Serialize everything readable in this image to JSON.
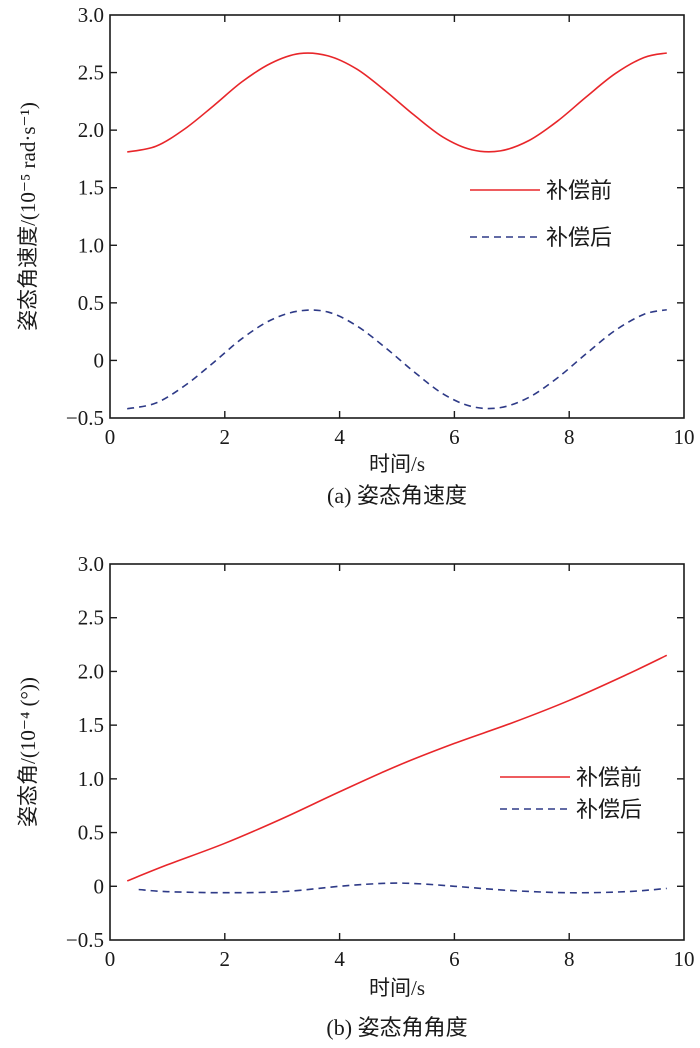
{
  "chart_data": [
    {
      "type": "line",
      "caption": "(a) 姿态角速度",
      "xlabel": "时间/s",
      "ylabel": "姿态角速度/(10⁻⁵ rad·s⁻¹)",
      "xlim": [
        0,
        10
      ],
      "ylim": [
        -0.5,
        3.0
      ],
      "xticks": [
        "0",
        "2",
        "4",
        "6",
        "8",
        "10"
      ],
      "yticks": [
        "−0.5",
        "0",
        "0.5",
        "1.0",
        "1.5",
        "2.0",
        "2.5",
        "3.0"
      ],
      "grid": false,
      "legend_position": "center-right",
      "series": [
        {
          "name": "补偿前",
          "color": "#e8262a",
          "style": "solid",
          "x": [
            0.3,
            0.8,
            1.3,
            1.8,
            2.3,
            2.8,
            3.3,
            3.8,
            4.3,
            4.8,
            5.3,
            5.8,
            6.3,
            6.8,
            7.3,
            7.8,
            8.3,
            8.8,
            9.3,
            9.7
          ],
          "y": [
            1.81,
            1.86,
            2.01,
            2.21,
            2.42,
            2.58,
            2.665,
            2.645,
            2.53,
            2.34,
            2.13,
            1.94,
            1.83,
            1.82,
            1.91,
            2.08,
            2.29,
            2.49,
            2.63,
            2.67
          ]
        },
        {
          "name": "补偿后",
          "color": "#2e3a87",
          "style": "dashed",
          "x": [
            0.3,
            0.8,
            1.3,
            1.8,
            2.3,
            2.8,
            3.3,
            3.8,
            4.3,
            4.8,
            5.3,
            5.8,
            6.3,
            6.8,
            7.3,
            7.8,
            8.3,
            8.8,
            9.3,
            9.7
          ],
          "y": [
            -0.42,
            -0.37,
            -0.22,
            -0.02,
            0.19,
            0.35,
            0.43,
            0.42,
            0.3,
            0.11,
            -0.1,
            -0.29,
            -0.4,
            -0.41,
            -0.32,
            -0.15,
            0.06,
            0.26,
            0.4,
            0.44
          ]
        }
      ]
    },
    {
      "type": "line",
      "caption": "(b) 姿态角角度",
      "xlabel": "时间/s",
      "ylabel": "姿态角/(10⁻⁴ (°))",
      "xlim": [
        0,
        10
      ],
      "ylim": [
        -0.5,
        3.0
      ],
      "xticks": [
        "0",
        "2",
        "4",
        "6",
        "8",
        "10"
      ],
      "yticks": [
        "−0.5",
        "0",
        "0.5",
        "1.0",
        "1.5",
        "2.0",
        "2.5",
        "3.0"
      ],
      "grid": false,
      "legend_position": "center-right",
      "series": [
        {
          "name": "补偿前",
          "color": "#e8262a",
          "style": "solid",
          "x": [
            0.3,
            1,
            2,
            3,
            4,
            5,
            6,
            7,
            8,
            9,
            9.7
          ],
          "y": [
            0.05,
            0.2,
            0.4,
            0.63,
            0.88,
            1.12,
            1.33,
            1.52,
            1.73,
            1.97,
            2.15
          ]
        },
        {
          "name": "补偿后",
          "color": "#2e3a87",
          "style": "dashed",
          "x": [
            0.5,
            1,
            2,
            3,
            4,
            4.5,
            5,
            5.5,
            6,
            7,
            8,
            9,
            9.7
          ],
          "y": [
            -0.03,
            -0.05,
            -0.06,
            -0.05,
            0.0,
            0.02,
            0.03,
            0.02,
            0.0,
            -0.04,
            -0.06,
            -0.05,
            -0.02
          ]
        }
      ]
    }
  ]
}
